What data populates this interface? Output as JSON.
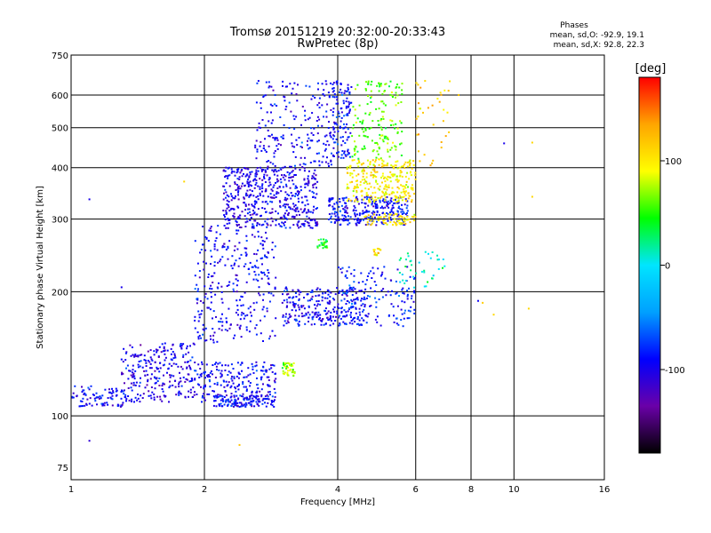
{
  "chart_data": {
    "type": "scatter",
    "title": "Tromsø 20151219 20:32:00-20:33:43",
    "subtitle": "RwPretec (8p)",
    "xlabel": "Frequency [MHz]",
    "ylabel": "Stationary phase Virtual Height [km]",
    "x_scale": "log",
    "y_scale": "log",
    "xlim": [
      1,
      16
    ],
    "ylim": [
      70,
      750
    ],
    "x_ticks": [
      1,
      2,
      4,
      6,
      8,
      10,
      16
    ],
    "y_ticks": [
      75,
      100,
      200,
      300,
      400,
      500,
      600,
      750
    ],
    "x_grid": [
      2,
      4,
      6,
      8,
      10
    ],
    "y_grid": [
      100,
      200,
      300,
      400,
      500,
      600
    ],
    "grid": true,
    "stats": {
      "heading": "Phases",
      "line_o": "mean, sd,O: -92.9, 19.1",
      "line_x": "mean, sd,X:  92.8, 22.3"
    },
    "colorbar": {
      "label": "[deg]",
      "range": [
        -180,
        180
      ],
      "ticks": [
        100,
        0,
        -100
      ],
      "tick_labels": [
        "100",
        "0",
        "-100"
      ],
      "stops": [
        "#000000",
        "#6a00a8",
        "#0000ff",
        "#00a0ff",
        "#00e5ff",
        "#00ff00",
        "#ffff00",
        "#ffa500",
        "#ff0000"
      ],
      "position": "right"
    },
    "clusters": [
      {
        "f": [
          1.0,
          1.35
        ],
        "h": [
          105,
          118
        ],
        "phase": -95,
        "n": 90
      },
      {
        "f": [
          1.3,
          1.9
        ],
        "h": [
          108,
          150
        ],
        "phase": -100,
        "n": 260
      },
      {
        "f": [
          1.9,
          2.9
        ],
        "h": [
          108,
          135
        ],
        "phase": -95,
        "n": 220
      },
      {
        "f": [
          2.1,
          2.9
        ],
        "h": [
          105,
          112
        ],
        "phase": -90,
        "n": 120
      },
      {
        "f": [
          1.9,
          2.9
        ],
        "h": [
          150,
          290
        ],
        "phase": -95,
        "n": 300
      },
      {
        "f": [
          2.2,
          3.6
        ],
        "h": [
          285,
          400
        ],
        "phase": -100,
        "n": 520
      },
      {
        "f": [
          2.6,
          4.0
        ],
        "h": [
          400,
          650
        ],
        "phase": -95,
        "n": 220
      },
      {
        "f": [
          3.0,
          4.6
        ],
        "h": [
          165,
          205
        ],
        "phase": -95,
        "n": 260
      },
      {
        "f": [
          4.0,
          6.0
        ],
        "h": [
          165,
          230
        ],
        "phase": -85,
        "n": 160
      },
      {
        "f": [
          3.8,
          5.8
        ],
        "h": [
          290,
          340
        ],
        "phase": -90,
        "n": 260
      },
      {
        "f": [
          4.2,
          6.0
        ],
        "h": [
          330,
          420
        ],
        "phase": 100,
        "n": 280
      },
      {
        "f": [
          4.6,
          6.0
        ],
        "h": [
          290,
          310
        ],
        "phase": 105,
        "n": 70
      },
      {
        "f": [
          4.3,
          5.6
        ],
        "h": [
          420,
          650
        ],
        "phase": 60,
        "n": 160
      },
      {
        "f": [
          3.9,
          4.3
        ],
        "h": [
          420,
          650
        ],
        "phase": -90,
        "n": 110
      },
      {
        "f": [
          3.0,
          3.2
        ],
        "h": [
          125,
          135
        ],
        "phase": 75,
        "n": 40
      },
      {
        "f": [
          3.6,
          3.8
        ],
        "h": [
          255,
          268
        ],
        "phase": 45,
        "n": 25
      },
      {
        "f": [
          4.8,
          5.0
        ],
        "h": [
          245,
          255
        ],
        "phase": 105,
        "n": 15
      },
      {
        "f": [
          5.5,
          7.0
        ],
        "h": [
          200,
          250
        ],
        "phase": 10,
        "n": 40
      },
      {
        "f": [
          6.0,
          7.3
        ],
        "h": [
          400,
          650
        ],
        "phase": 120,
        "n": 35
      }
    ],
    "outliers": [
      {
        "f": 1.1,
        "h": 87,
        "phase": -110
      },
      {
        "f": 2.4,
        "h": 85,
        "phase": 120
      },
      {
        "f": 1.8,
        "h": 370,
        "phase": 110
      },
      {
        "f": 8.3,
        "h": 190,
        "phase": -95
      },
      {
        "f": 8.5,
        "h": 188,
        "phase": 115
      },
      {
        "f": 9.0,
        "h": 176,
        "phase": 110
      },
      {
        "f": 9.5,
        "h": 458,
        "phase": -100
      },
      {
        "f": 11.0,
        "h": 460,
        "phase": 110
      },
      {
        "f": 11.0,
        "h": 340,
        "phase": 110
      },
      {
        "f": 10.8,
        "h": 182,
        "phase": 110
      },
      {
        "f": 1.3,
        "h": 205,
        "phase": -100
      },
      {
        "f": 1.1,
        "h": 335,
        "phase": -100
      },
      {
        "f": 7.5,
        "h": 600,
        "phase": 120
      }
    ]
  }
}
